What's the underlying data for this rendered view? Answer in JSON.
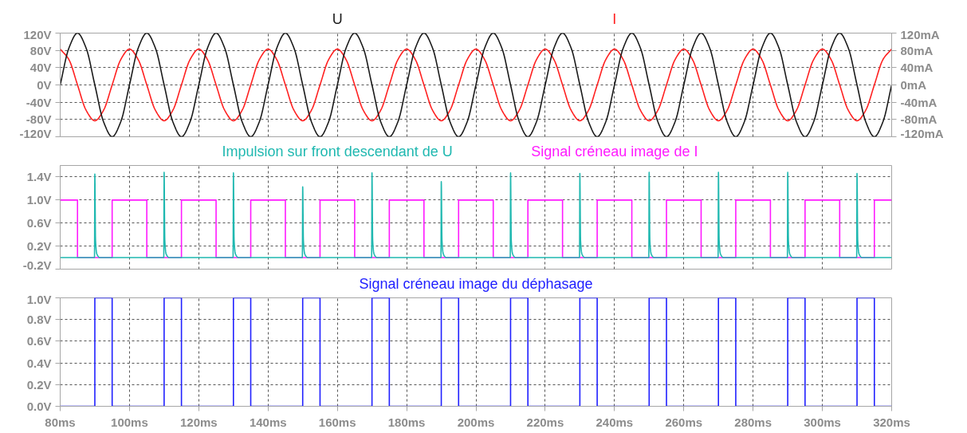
{
  "chart_data": [
    {
      "type": "line",
      "grid": true,
      "tick_labels": "y",
      "xlim": [
        80,
        320
      ],
      "xticks": [
        80,
        100,
        120,
        140,
        160,
        180,
        200,
        220,
        240,
        260,
        280,
        300,
        320
      ],
      "ylim": [
        -120,
        120
      ],
      "yticks": [
        {
          "value": -120,
          "label": "-120V"
        },
        {
          "value": -80,
          "label": "-80V"
        },
        {
          "value": -40,
          "label": "-40V"
        },
        {
          "value": 0,
          "label": "0V"
        },
        {
          "value": 40,
          "label": "40V"
        },
        {
          "value": 80,
          "label": "80V"
        },
        {
          "value": 120,
          "label": "120V"
        }
      ],
      "y2lim": [
        -120,
        120
      ],
      "y2ticks": [
        {
          "value": -120,
          "label": "-120mA"
        },
        {
          "value": -80,
          "label": "-80mA"
        },
        {
          "value": -40,
          "label": "-40mA"
        },
        {
          "value": 0,
          "label": "0mA"
        },
        {
          "value": 40,
          "label": "40mA"
        },
        {
          "value": 80,
          "label": "80mA"
        },
        {
          "value": 120,
          "label": "120mA"
        }
      ],
      "series": [
        {
          "name": "U",
          "color": "#1a1a1a",
          "x": [
            80,
            82.5,
            85,
            87.5,
            90,
            92.5,
            95,
            97.5,
            100,
            102.5,
            105,
            107.5,
            110,
            112.5,
            115,
            117.5,
            120,
            122.5,
            125,
            127.5,
            130,
            132.5,
            135,
            137.5,
            140,
            142.5,
            145,
            147.5,
            150,
            152.5,
            155,
            157.5,
            160,
            162.5,
            165,
            167.5,
            170,
            172.5,
            175,
            177.5,
            180,
            182.5,
            185,
            187.5,
            190,
            192.5,
            195,
            197.5,
            200,
            202.5,
            205,
            207.5,
            210,
            212.5,
            215,
            217.5,
            220,
            222.5,
            225,
            227.5,
            230,
            232.5,
            235,
            237.5,
            240,
            242.5,
            245,
            247.5,
            250,
            252.5,
            255,
            257.5,
            260,
            262.5,
            265,
            267.5,
            270,
            272.5,
            275,
            277.5,
            280,
            282.5,
            285,
            287.5,
            290,
            292.5,
            295,
            297.5,
            300,
            302.5,
            305,
            307.5,
            310,
            312.5,
            315,
            317.5,
            320
          ],
          "values": [
            0,
            85,
            120,
            85,
            0,
            -85,
            -120,
            -85,
            0,
            85,
            120,
            85,
            0,
            -85,
            -120,
            -85,
            0,
            85,
            120,
            85,
            0,
            -85,
            -120,
            -85,
            0,
            85,
            120,
            85,
            0,
            -85,
            -120,
            -85,
            0,
            85,
            120,
            85,
            0,
            -85,
            -120,
            -85,
            0,
            85,
            120,
            85,
            0,
            -85,
            -120,
            -85,
            0,
            85,
            120,
            85,
            0,
            -85,
            -120,
            -85,
            0,
            85,
            120,
            85,
            0,
            -85,
            -120,
            -85,
            0,
            85,
            120,
            85,
            0,
            -85,
            -120,
            -85,
            0,
            85,
            120,
            85,
            0,
            -85,
            -120,
            -85,
            0,
            85,
            120,
            85,
            0,
            -85,
            -120,
            -85,
            0,
            85,
            120,
            85,
            0,
            -85,
            -120,
            -85,
            0
          ]
        },
        {
          "name": "I",
          "color": "#ff2020",
          "axis": "y2",
          "x": [
            80,
            82.5,
            85,
            87.5,
            90,
            92.5,
            95,
            97.5,
            100,
            102.5,
            105,
            107.5,
            110,
            112.5,
            115,
            117.5,
            120,
            122.5,
            125,
            127.5,
            130,
            132.5,
            135,
            137.5,
            140,
            142.5,
            145,
            147.5,
            150,
            152.5,
            155,
            157.5,
            160,
            162.5,
            165,
            167.5,
            170,
            172.5,
            175,
            177.5,
            180,
            182.5,
            185,
            187.5,
            190,
            192.5,
            195,
            197.5,
            200,
            202.5,
            205,
            207.5,
            210,
            212.5,
            215,
            217.5,
            220,
            222.5,
            225,
            227.5,
            230,
            232.5,
            235,
            237.5,
            240,
            242.5,
            245,
            247.5,
            250,
            252.5,
            255,
            257.5,
            260,
            262.5,
            265,
            267.5,
            270,
            272.5,
            275,
            277.5,
            280,
            282.5,
            285,
            287.5,
            290,
            292.5,
            295,
            297.5,
            300,
            302.5,
            305,
            307.5,
            310,
            312.5,
            315,
            317.5,
            320
          ],
          "values": [
            83,
            59,
            0,
            -59,
            -83,
            -59,
            0,
            59,
            83,
            59,
            0,
            -59,
            -83,
            -59,
            0,
            59,
            83,
            59,
            0,
            -59,
            -83,
            -59,
            0,
            59,
            83,
            59,
            0,
            -59,
            -83,
            -59,
            0,
            59,
            83,
            59,
            0,
            -59,
            -83,
            -59,
            0,
            59,
            83,
            59,
            0,
            -59,
            -83,
            -59,
            0,
            59,
            83,
            59,
            0,
            -59,
            -83,
            -59,
            0,
            59,
            83,
            59,
            0,
            -59,
            -83,
            -59,
            0,
            59,
            83,
            59,
            0,
            -59,
            -83,
            -59,
            0,
            59,
            83,
            59,
            0,
            -59,
            -83,
            -59,
            0,
            59,
            83,
            59,
            0,
            -59,
            -83,
            -59,
            0,
            59,
            83,
            59,
            0,
            -59,
            -83,
            -59,
            0,
            59,
            83
          ]
        }
      ]
    },
    {
      "type": "line",
      "grid": true,
      "tick_labels": "y",
      "xlim": [
        80,
        320
      ],
      "xticks": [
        80,
        100,
        120,
        140,
        160,
        180,
        200,
        220,
        240,
        260,
        280,
        300,
        320
      ],
      "ylim": [
        -0.2,
        1.6
      ],
      "yticks": [
        {
          "value": -0.2,
          "label": "-0.2V"
        },
        {
          "value": 0.2,
          "label": "0.2V"
        },
        {
          "value": 0.6,
          "label": "0.6V"
        },
        {
          "value": 1.0,
          "label": "1.0V"
        },
        {
          "value": 1.4,
          "label": "1.4V"
        }
      ],
      "series": [
        {
          "name": "Impulsion sur front descendant de U",
          "color": "#1fb8b0",
          "x": [
            80,
            89.9,
            90,
            90.2,
            90.6,
            91.5,
            109.9,
            110,
            110.2,
            110.6,
            111.5,
            129.9,
            130,
            130.2,
            130.6,
            131.5,
            149.9,
            150,
            150.2,
            150.6,
            151.5,
            169.9,
            170,
            170.2,
            170.6,
            171.5,
            189.9,
            190,
            190.2,
            190.6,
            191.5,
            209.9,
            210,
            210.2,
            210.6,
            211.5,
            229.9,
            230,
            230.2,
            230.6,
            231.5,
            249.9,
            250,
            250.2,
            250.6,
            251.5,
            269.9,
            270,
            270.2,
            270.6,
            271.5,
            289.9,
            290,
            290.2,
            290.6,
            291.5,
            309.9,
            310,
            310.2,
            310.6,
            311.5,
            320
          ],
          "values": [
            0,
            0,
            1.45,
            0.3,
            0.06,
            0,
            0,
            1.48,
            0.3,
            0.06,
            0,
            0,
            1.47,
            0.3,
            0.06,
            0,
            0,
            1.23,
            0.3,
            0.06,
            0,
            0,
            1.47,
            0.3,
            0.06,
            0,
            0,
            1.32,
            0.3,
            0.06,
            0,
            0,
            1.47,
            0.3,
            0.06,
            0,
            0,
            1.46,
            0.3,
            0.06,
            0,
            0,
            1.48,
            0.3,
            0.06,
            0,
            0,
            1.48,
            0.3,
            0.06,
            0,
            0,
            1.48,
            0.3,
            0.06,
            0,
            0,
            1.46,
            0.3,
            0.06,
            0,
            0
          ]
        },
        {
          "name": "Signal créneau image de I",
          "color": "#ff1aff",
          "x": [
            80,
            85,
            85,
            95,
            95,
            105,
            105,
            115,
            115,
            125,
            125,
            135,
            135,
            145,
            145,
            155,
            155,
            165,
            165,
            175,
            175,
            185,
            185,
            195,
            195,
            205,
            205,
            215,
            215,
            225,
            225,
            235,
            235,
            245,
            245,
            255,
            255,
            265,
            265,
            275,
            275,
            285,
            285,
            295,
            295,
            305,
            305,
            315,
            315,
            320
          ],
          "values": [
            1,
            1,
            0,
            0,
            1,
            1,
            0,
            0,
            1,
            1,
            0,
            0,
            1,
            1,
            0,
            0,
            1,
            1,
            0,
            0,
            1,
            1,
            0,
            0,
            1,
            1,
            0,
            0,
            1,
            1,
            0,
            0,
            1,
            1,
            0,
            0,
            1,
            1,
            0,
            0,
            1,
            1,
            0,
            0,
            1,
            1,
            0,
            0,
            1,
            1
          ]
        }
      ]
    },
    {
      "type": "line",
      "grid": true,
      "xlim": [
        80,
        320
      ],
      "xticks": [
        {
          "value": 80,
          "label": "80ms"
        },
        {
          "value": 100,
          "label": "100ms"
        },
        {
          "value": 120,
          "label": "120ms"
        },
        {
          "value": 140,
          "label": "140ms"
        },
        {
          "value": 160,
          "label": "160ms"
        },
        {
          "value": 180,
          "label": "180ms"
        },
        {
          "value": 200,
          "label": "200ms"
        },
        {
          "value": 220,
          "label": "220ms"
        },
        {
          "value": 240,
          "label": "240ms"
        },
        {
          "value": 260,
          "label": "260ms"
        },
        {
          "value": 280,
          "label": "280ms"
        },
        {
          "value": 300,
          "label": "300ms"
        },
        {
          "value": 320,
          "label": "320ms"
        }
      ],
      "ylim": [
        0,
        1
      ],
      "yticks": [
        {
          "value": 0,
          "label": "0.0V"
        },
        {
          "value": 0.2,
          "label": "0.2V"
        },
        {
          "value": 0.4,
          "label": "0.4V"
        },
        {
          "value": 0.6,
          "label": "0.6V"
        },
        {
          "value": 0.8,
          "label": "0.8V"
        },
        {
          "value": 1.0,
          "label": "1.0V"
        }
      ],
      "series": [
        {
          "name": "Signal créneau image du déphasage",
          "color": "#2020ff",
          "x": [
            80,
            90,
            90,
            95,
            95,
            110,
            110,
            115,
            115,
            130,
            130,
            135,
            135,
            150,
            150,
            155,
            155,
            170,
            170,
            175,
            175,
            190,
            190,
            195,
            195,
            210,
            210,
            215,
            215,
            230,
            230,
            235,
            235,
            250,
            250,
            255,
            255,
            270,
            270,
            275,
            275,
            290,
            290,
            295,
            295,
            310,
            310,
            315,
            315,
            320
          ],
          "values": [
            0,
            0,
            1,
            1,
            0,
            0,
            1,
            1,
            0,
            0,
            1,
            1,
            0,
            0,
            1,
            1,
            0,
            0,
            1,
            1,
            0,
            0,
            1,
            1,
            0,
            0,
            1,
            1,
            0,
            0,
            1,
            1,
            0,
            0,
            1,
            1,
            0,
            0,
            1,
            1,
            0,
            0,
            1,
            1,
            0,
            0,
            1,
            1,
            0,
            0
          ]
        }
      ]
    }
  ]
}
